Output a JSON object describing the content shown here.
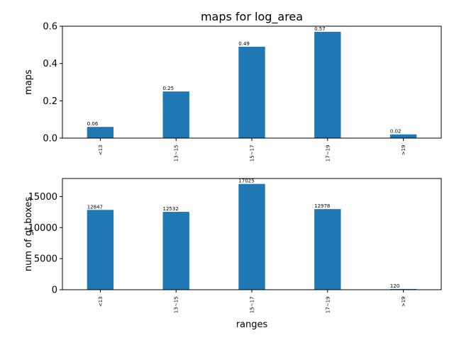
{
  "chart_data": [
    {
      "type": "bar",
      "title": "maps for log_area",
      "xlabel": "",
      "ylabel": "maps",
      "categories": [
        "<13",
        "13~15",
        "15~17",
        "17~19",
        ">19"
      ],
      "values": [
        0.06,
        0.25,
        0.49,
        0.57,
        0.02
      ],
      "data_labels": [
        "0.06",
        "0.25",
        "0.49",
        "0.57",
        "0.02"
      ],
      "ylim": [
        0,
        0.6
      ],
      "yticks": [
        0.0,
        0.2,
        0.4,
        0.6
      ],
      "ytick_labels": [
        "0.0",
        "0.2",
        "0.4",
        "0.6"
      ],
      "color": "#1f77b4",
      "grid": false
    },
    {
      "type": "bar",
      "title": "",
      "xlabel": "ranges",
      "ylabel": "num of gt boxes",
      "categories": [
        "<13",
        "13~15",
        "15~17",
        "17~19",
        ">19"
      ],
      "values": [
        12847,
        12532,
        17025,
        12978,
        120
      ],
      "data_labels": [
        "12847",
        "12532",
        "17025",
        "12978",
        "120"
      ],
      "ylim": [
        0,
        17900
      ],
      "yticks": [
        0,
        5000,
        10000,
        15000
      ],
      "ytick_labels": [
        "0",
        "5000",
        "10000",
        "15000"
      ],
      "color": "#1f77b4",
      "grid": false
    }
  ]
}
